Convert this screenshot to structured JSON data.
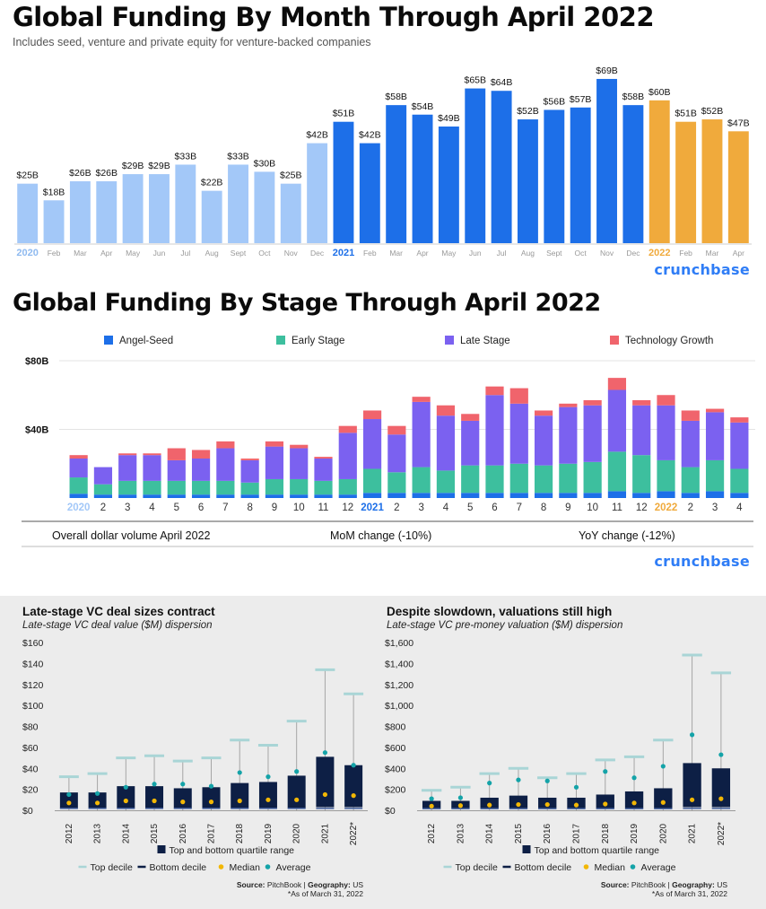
{
  "chart1": {
    "title": "Global Funding By Month Through April 2022",
    "subtitle": "Includes seed, venture and private equity for venture-backed companies",
    "brand": "crunchbase",
    "chart_data": {
      "type": "bar",
      "categories": [
        "2020",
        "Feb",
        "Mar",
        "Apr",
        "May",
        "Jun",
        "Jul",
        "Aug",
        "Sept",
        "Oct",
        "Nov",
        "Dec",
        "2021",
        "Feb",
        "Mar",
        "Apr",
        "May",
        "Jun",
        "Jul",
        "Aug",
        "Sept",
        "Oct",
        "Nov",
        "Dec",
        "2022",
        "Feb",
        "Mar",
        "Apr"
      ],
      "values": [
        25,
        18,
        26,
        26,
        29,
        29,
        33,
        22,
        33,
        30,
        25,
        42,
        51,
        42,
        58,
        54,
        49,
        65,
        64,
        52,
        56,
        57,
        69,
        58,
        60,
        51,
        52,
        47
      ],
      "value_labels": [
        "$25B",
        "$18B",
        "$26B",
        "$26B",
        "$29B",
        "$29B",
        "$33B",
        "$22B",
        "$33B",
        "$30B",
        "$25B",
        "$42B",
        "$51B",
        "$42B",
        "$58B",
        "$54B",
        "$49B",
        "$65B",
        "$64B",
        "$52B",
        "$56B",
        "$57B",
        "$69B",
        "$58B",
        "$60B",
        "$51B",
        "$52B",
        "$47B"
      ],
      "year_groups": [
        {
          "year": "2020",
          "color": "#a3c8f8",
          "label_color": "#8fbaf0"
        },
        {
          "year": "2021",
          "color": "#1d6fe8",
          "label_color": "#1d6fe8"
        },
        {
          "year": "2022",
          "color": "#f0aa3c",
          "label_color": "#f0aa3c"
        }
      ],
      "ylim": [
        0,
        72
      ]
    }
  },
  "chart2": {
    "title": "Global Funding By Stage Through April 2022",
    "brand": "crunchbase",
    "summary": {
      "left": "Overall dollar volume April 2022",
      "mid": "MoM change (-10%)",
      "right": "YoY change (-12%)"
    },
    "chart_data": {
      "type": "bar",
      "stacked": true,
      "categories": [
        "2020",
        "2",
        "3",
        "4",
        "5",
        "6",
        "7",
        "8",
        "9",
        "10",
        "11",
        "12",
        "2021",
        "2",
        "3",
        "4",
        "5",
        "6",
        "7",
        "8",
        "9",
        "10",
        "11",
        "12",
        "2022",
        "2",
        "3",
        "4"
      ],
      "highlight": {
        "2020": "#a3c8f8",
        "2021": "#1d6fe8",
        "2022": "#f0aa3c"
      },
      "series": [
        {
          "name": "Angel-Seed",
          "color": "#1d6fe8",
          "values": [
            2.5,
            2,
            2,
            2,
            2,
            2,
            2,
            2,
            2,
            2,
            2,
            2,
            3,
            3,
            3,
            3,
            3,
            3,
            3,
            3,
            3,
            3,
            4,
            3,
            4,
            3,
            4,
            3
          ]
        },
        {
          "name": "Early Stage",
          "color": "#3dbf9e",
          "values": [
            9.5,
            6,
            8,
            8,
            8,
            8,
            8,
            7,
            9,
            9,
            8,
            9,
            14,
            12,
            15,
            13,
            16,
            16,
            17,
            16,
            17,
            18,
            23,
            22,
            18,
            15,
            18,
            14
          ]
        },
        {
          "name": "Late Stage",
          "color": "#7b61f0",
          "values": [
            11,
            10,
            15,
            15,
            12,
            13,
            19,
            13,
            19,
            18,
            13,
            27,
            29,
            22,
            38,
            32,
            26,
            41,
            35,
            29,
            33,
            33,
            36,
            29,
            32,
            27,
            28,
            27
          ]
        },
        {
          "name": "Technology Growth",
          "color": "#f0646c",
          "values": [
            2,
            0,
            1,
            1,
            7,
            5,
            4,
            1,
            3,
            2,
            1,
            4,
            5,
            5,
            3,
            6,
            4,
            5,
            9,
            3,
            2,
            3,
            7,
            3,
            6,
            6,
            2,
            3
          ]
        }
      ],
      "yticks": [
        "$40B",
        "$80B"
      ],
      "ylim": [
        0,
        80
      ]
    }
  },
  "chart3": {
    "title": "Late-stage VC deal sizes contract",
    "subtitle": "Late-stage VC deal value ($M) dispersion",
    "chart_data": {
      "type": "boxplot",
      "categories": [
        "2012",
        "2013",
        "2014",
        "2015",
        "2016",
        "2017",
        "2018",
        "2019",
        "2020",
        "2021",
        "2022*"
      ],
      "yticks": [
        "$0",
        "$20",
        "$40",
        "$60",
        "$80",
        "$100",
        "$120",
        "$140",
        "$160"
      ],
      "ylim": [
        0,
        160
      ],
      "top_decile": [
        32,
        35,
        50,
        52,
        47,
        50,
        67,
        62,
        85,
        134,
        111
      ],
      "top_quartile": [
        17,
        17,
        23,
        23,
        21,
        22,
        26,
        27,
        33,
        51,
        43
      ],
      "bottom_quartile": [
        2,
        2,
        2,
        2,
        2,
        2,
        2,
        2,
        2,
        3,
        3
      ],
      "bottom_decile": [
        1,
        1,
        1,
        1,
        1,
        1,
        1,
        1,
        1,
        1,
        1
      ],
      "median": [
        7,
        7,
        9,
        9,
        8,
        8,
        9,
        10,
        10,
        15,
        14
      ],
      "average": [
        15,
        16,
        22,
        25,
        25,
        23,
        36,
        32,
        37,
        55,
        43
      ]
    }
  },
  "chart4": {
    "title": "Despite slowdown, valuations still high",
    "subtitle": "Late-stage VC pre-money valuation ($M) dispersion",
    "chart_data": {
      "type": "boxplot",
      "categories": [
        "2012",
        "2013",
        "2014",
        "2015",
        "2016",
        "2017",
        "2018",
        "2019",
        "2020",
        "2021",
        "2022*"
      ],
      "yticks": [
        "$0",
        "$200",
        "$400",
        "$600",
        "$800",
        "$1,000",
        "$1,200",
        "$1,400",
        "$1,600"
      ],
      "ylim": [
        0,
        1600
      ],
      "top_decile": [
        190,
        220,
        350,
        400,
        310,
        350,
        480,
        510,
        670,
        1480,
        1310
      ],
      "top_quartile": [
        90,
        90,
        120,
        140,
        120,
        120,
        150,
        180,
        210,
        450,
        400
      ],
      "bottom_quartile": [
        20,
        20,
        20,
        20,
        20,
        20,
        20,
        20,
        20,
        30,
        30
      ],
      "bottom_decile": [
        8,
        8,
        8,
        8,
        8,
        8,
        8,
        8,
        8,
        10,
        10
      ],
      "median": [
        40,
        45,
        50,
        55,
        55,
        50,
        60,
        70,
        75,
        100,
        110
      ],
      "average": [
        110,
        120,
        260,
        290,
        280,
        220,
        370,
        310,
        420,
        720,
        530
      ]
    }
  },
  "legend_box": {
    "row1": "Top and bottom quartile range",
    "items": [
      "Top decile",
      "Bottom decile",
      "Median",
      "Average"
    ],
    "colors": {
      "quartile": "#0d1f45",
      "top_decile": "#a9d5d6",
      "bottom_decile": "#0d1f45",
      "median": "#f2b705",
      "average": "#14a3a8"
    }
  },
  "source": {
    "label": "Source:",
    "name": "PitchBook",
    "geo_label": "Geography:",
    "geo": "US",
    "note": "*As of March 31, 2022"
  }
}
